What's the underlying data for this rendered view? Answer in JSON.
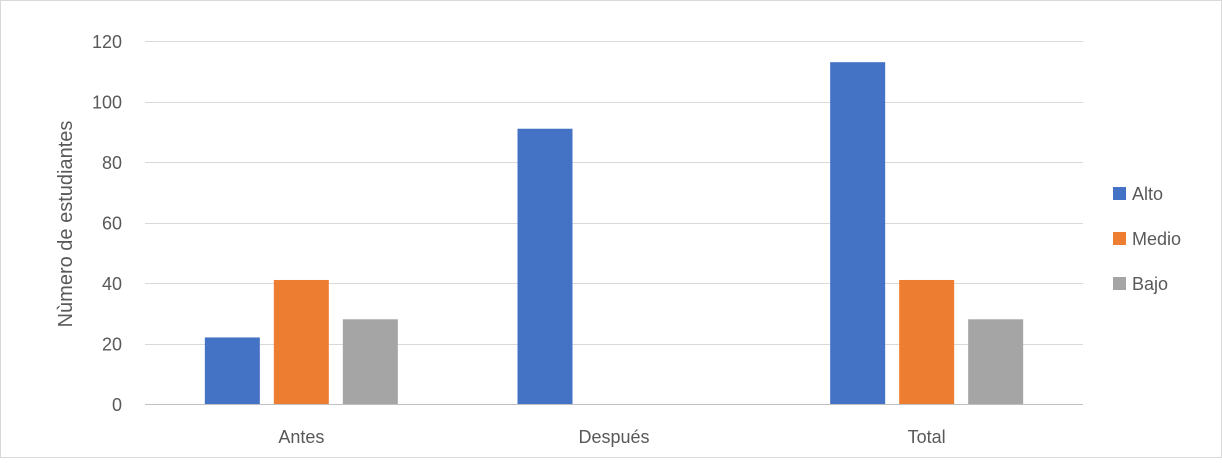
{
  "chart_data": {
    "type": "bar",
    "title": "",
    "xlabel": "",
    "ylabel": "Nùmero de estudiantes",
    "categories": [
      "Antes",
      "Después",
      "Total"
    ],
    "series": [
      {
        "name": "Alto",
        "color": "#4472C4",
        "values": [
          22,
          91,
          113
        ]
      },
      {
        "name": "Medio",
        "color": "#ED7D31",
        "values": [
          41,
          null,
          41
        ]
      },
      {
        "name": "Bajo",
        "color": "#A5A5A5",
        "values": [
          28,
          null,
          28
        ]
      }
    ],
    "ylim": [
      0,
      120
    ],
    "yticks": [
      0,
      20,
      40,
      60,
      80,
      100,
      120
    ],
    "grid": true,
    "legend_position": "right",
    "colors": {
      "grid": "#D9D9D9",
      "axis": "#BFBFBF",
      "text": "#595959",
      "border": "#D9D9D9"
    }
  }
}
